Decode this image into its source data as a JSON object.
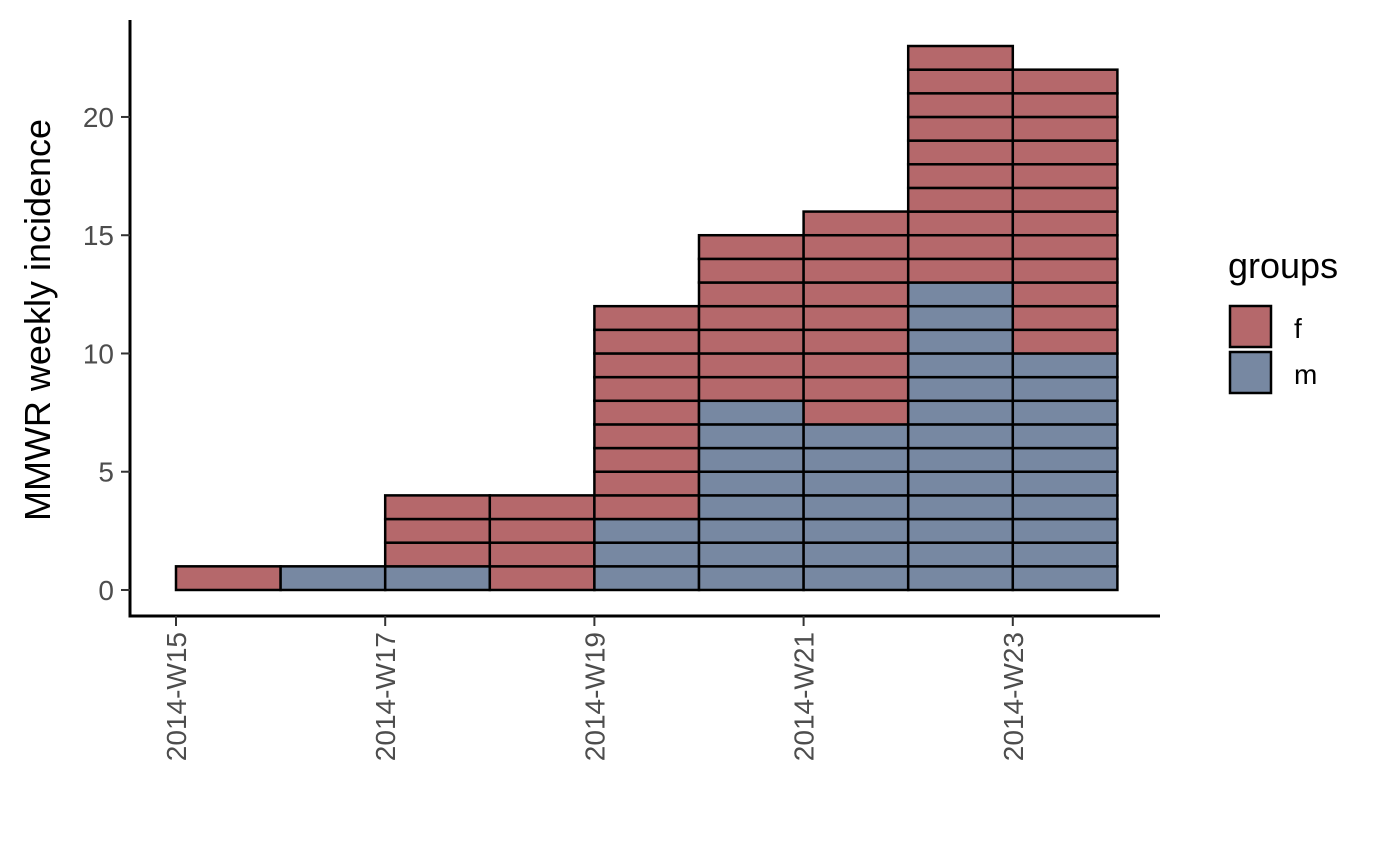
{
  "chart_data": {
    "type": "bar",
    "stacked": true,
    "title": "",
    "xlabel": "",
    "ylabel": "MMWR weekly incidence",
    "x_tick_labels": [
      "2014-W15",
      "2014-W17",
      "2014-W19",
      "2014-W21",
      "2014-W23"
    ],
    "categories": [
      "2014-W15",
      "2014-W16",
      "2014-W17",
      "2014-W18",
      "2014-W19",
      "2014-W20",
      "2014-W21",
      "2014-W22",
      "2014-W23"
    ],
    "series": [
      {
        "name": "m",
        "values": [
          0,
          1,
          1,
          0,
          3,
          8,
          7,
          13,
          10
        ],
        "color": "#7788a2"
      },
      {
        "name": "f",
        "values": [
          1,
          0,
          3,
          4,
          9,
          7,
          9,
          10,
          12
        ],
        "color": "#b5686b"
      }
    ],
    "ylim": [
      -1.1,
      24.1
    ],
    "yticks": [
      0,
      5,
      10,
      15,
      20
    ],
    "grid": false,
    "legend": {
      "title": "groups",
      "position": "right",
      "order": [
        "f",
        "m"
      ]
    }
  }
}
